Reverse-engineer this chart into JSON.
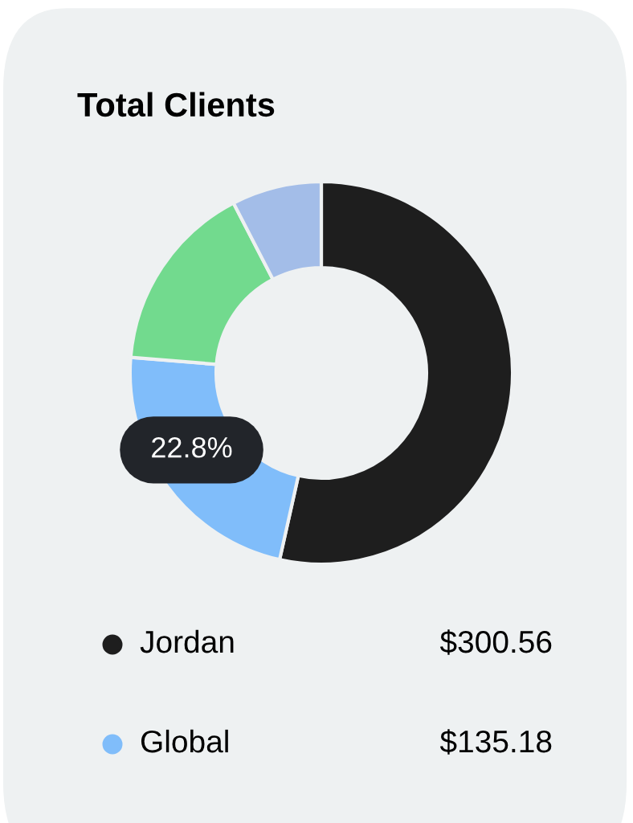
{
  "chart_data": {
    "type": "donut",
    "title": "Total Clients",
    "categories": [
      "Jordan",
      "Global",
      null,
      null
    ],
    "values": [
      53.5,
      22.8,
      16.1,
      7.6
    ],
    "colors": [
      "#1e1e1e",
      "#80bdfa",
      "#72da8e",
      "#a3bde8"
    ],
    "value_labels": [
      null,
      "22.8%",
      null,
      null
    ],
    "legend": "bottom",
    "annotations": [
      "$300.56",
      "$135.18"
    ]
  }
}
